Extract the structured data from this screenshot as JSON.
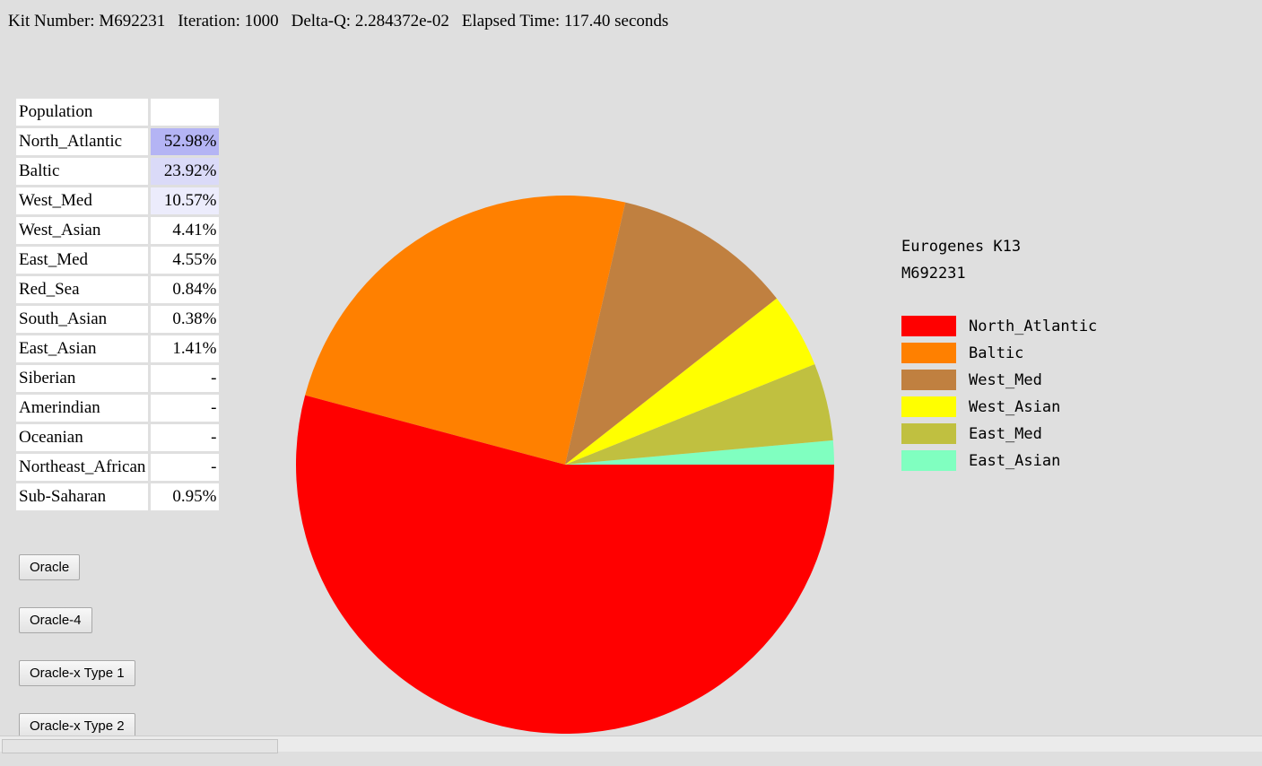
{
  "header": [
    "Kit Number: M692231",
    "Iteration: 1000",
    "Delta-Q: 2.284372e-02",
    "Elapsed Time: 117.40 seconds"
  ],
  "table": {
    "rows": [
      [
        "Population",
        ""
      ],
      [
        "North_Atlantic",
        "52.98%"
      ],
      [
        "Baltic",
        "23.92%"
      ],
      [
        "West_Med",
        "10.57%"
      ],
      [
        "West_Asian",
        "4.41%"
      ],
      [
        "East_Med",
        "4.55%"
      ],
      [
        "Red_Sea",
        "0.84%"
      ],
      [
        "South_Asian",
        "0.38%"
      ],
      [
        "East_Asian",
        "1.41%"
      ],
      [
        "Siberian",
        "-"
      ],
      [
        "Amerindian",
        "-"
      ],
      [
        "Oceanian",
        "-"
      ],
      [
        "Northeast_African",
        "-"
      ],
      [
        "Sub-Saharan",
        "0.95%"
      ]
    ],
    "highlight": [
      "",
      "#b4b4f4",
      "#dadaf8",
      "#ececfc",
      "",
      "",
      "",
      "",
      "",
      "",
      "",
      "",
      "",
      ""
    ]
  },
  "buttons": [
    "Oracle",
    "Oracle-4",
    "Oracle-x Type 1",
    "Oracle-x Type 2"
  ],
  "chart_data": {
    "type": "pie",
    "title": "Eurogenes K13",
    "subtitle": "M692231",
    "categories": [
      "North_Atlantic",
      "Baltic",
      "West_Med",
      "West_Asian",
      "East_Med",
      "East_Asian"
    ],
    "values": [
      52.98,
      23.92,
      10.57,
      4.41,
      4.55,
      1.41
    ],
    "colors": [
      "#ff0000",
      "#ff8000",
      "#c08040",
      "#ffff00",
      "#c0c040",
      "#80ffc0"
    ]
  }
}
